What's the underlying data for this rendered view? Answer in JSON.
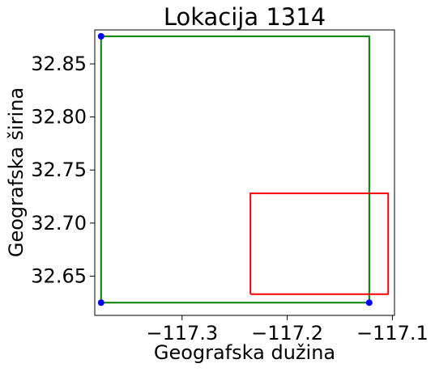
{
  "chart_data": {
    "type": "scatter",
    "title": "Lokacija 1314",
    "xlabel": "Geografska dužina",
    "ylabel": "Geografska širina",
    "xlim": [
      -117.383,
      -117.098
    ],
    "ylim": [
      32.613,
      32.882
    ],
    "xticks": [
      {
        "value": -117.3,
        "label": "−117.3"
      },
      {
        "value": -117.2,
        "label": "−117.2"
      },
      {
        "value": -117.1,
        "label": "−117.1"
      }
    ],
    "yticks": [
      {
        "value": 32.65,
        "label": "32.65"
      },
      {
        "value": 32.7,
        "label": "32.70"
      },
      {
        "value": 32.75,
        "label": "32.75"
      },
      {
        "value": 32.8,
        "label": "32.80"
      },
      {
        "value": 32.85,
        "label": "32.85"
      }
    ],
    "grid": false,
    "series": [
      {
        "kind": "rectangle",
        "color": "#008000",
        "x": [
          -117.377,
          -117.122,
          -117.122,
          -117.377,
          -117.377
        ],
        "y": [
          32.625,
          32.625,
          32.876,
          32.876,
          32.625
        ]
      },
      {
        "kind": "rectangle",
        "color": "#ff0000",
        "x": [
          -117.235,
          -117.104,
          -117.104,
          -117.235,
          -117.235
        ],
        "y": [
          32.633,
          32.633,
          32.728,
          32.728,
          32.633
        ]
      },
      {
        "kind": "points",
        "color": "#0000ff",
        "x": [
          -117.377,
          -117.377,
          -117.122
        ],
        "y": [
          32.876,
          32.625,
          32.625
        ]
      }
    ]
  }
}
